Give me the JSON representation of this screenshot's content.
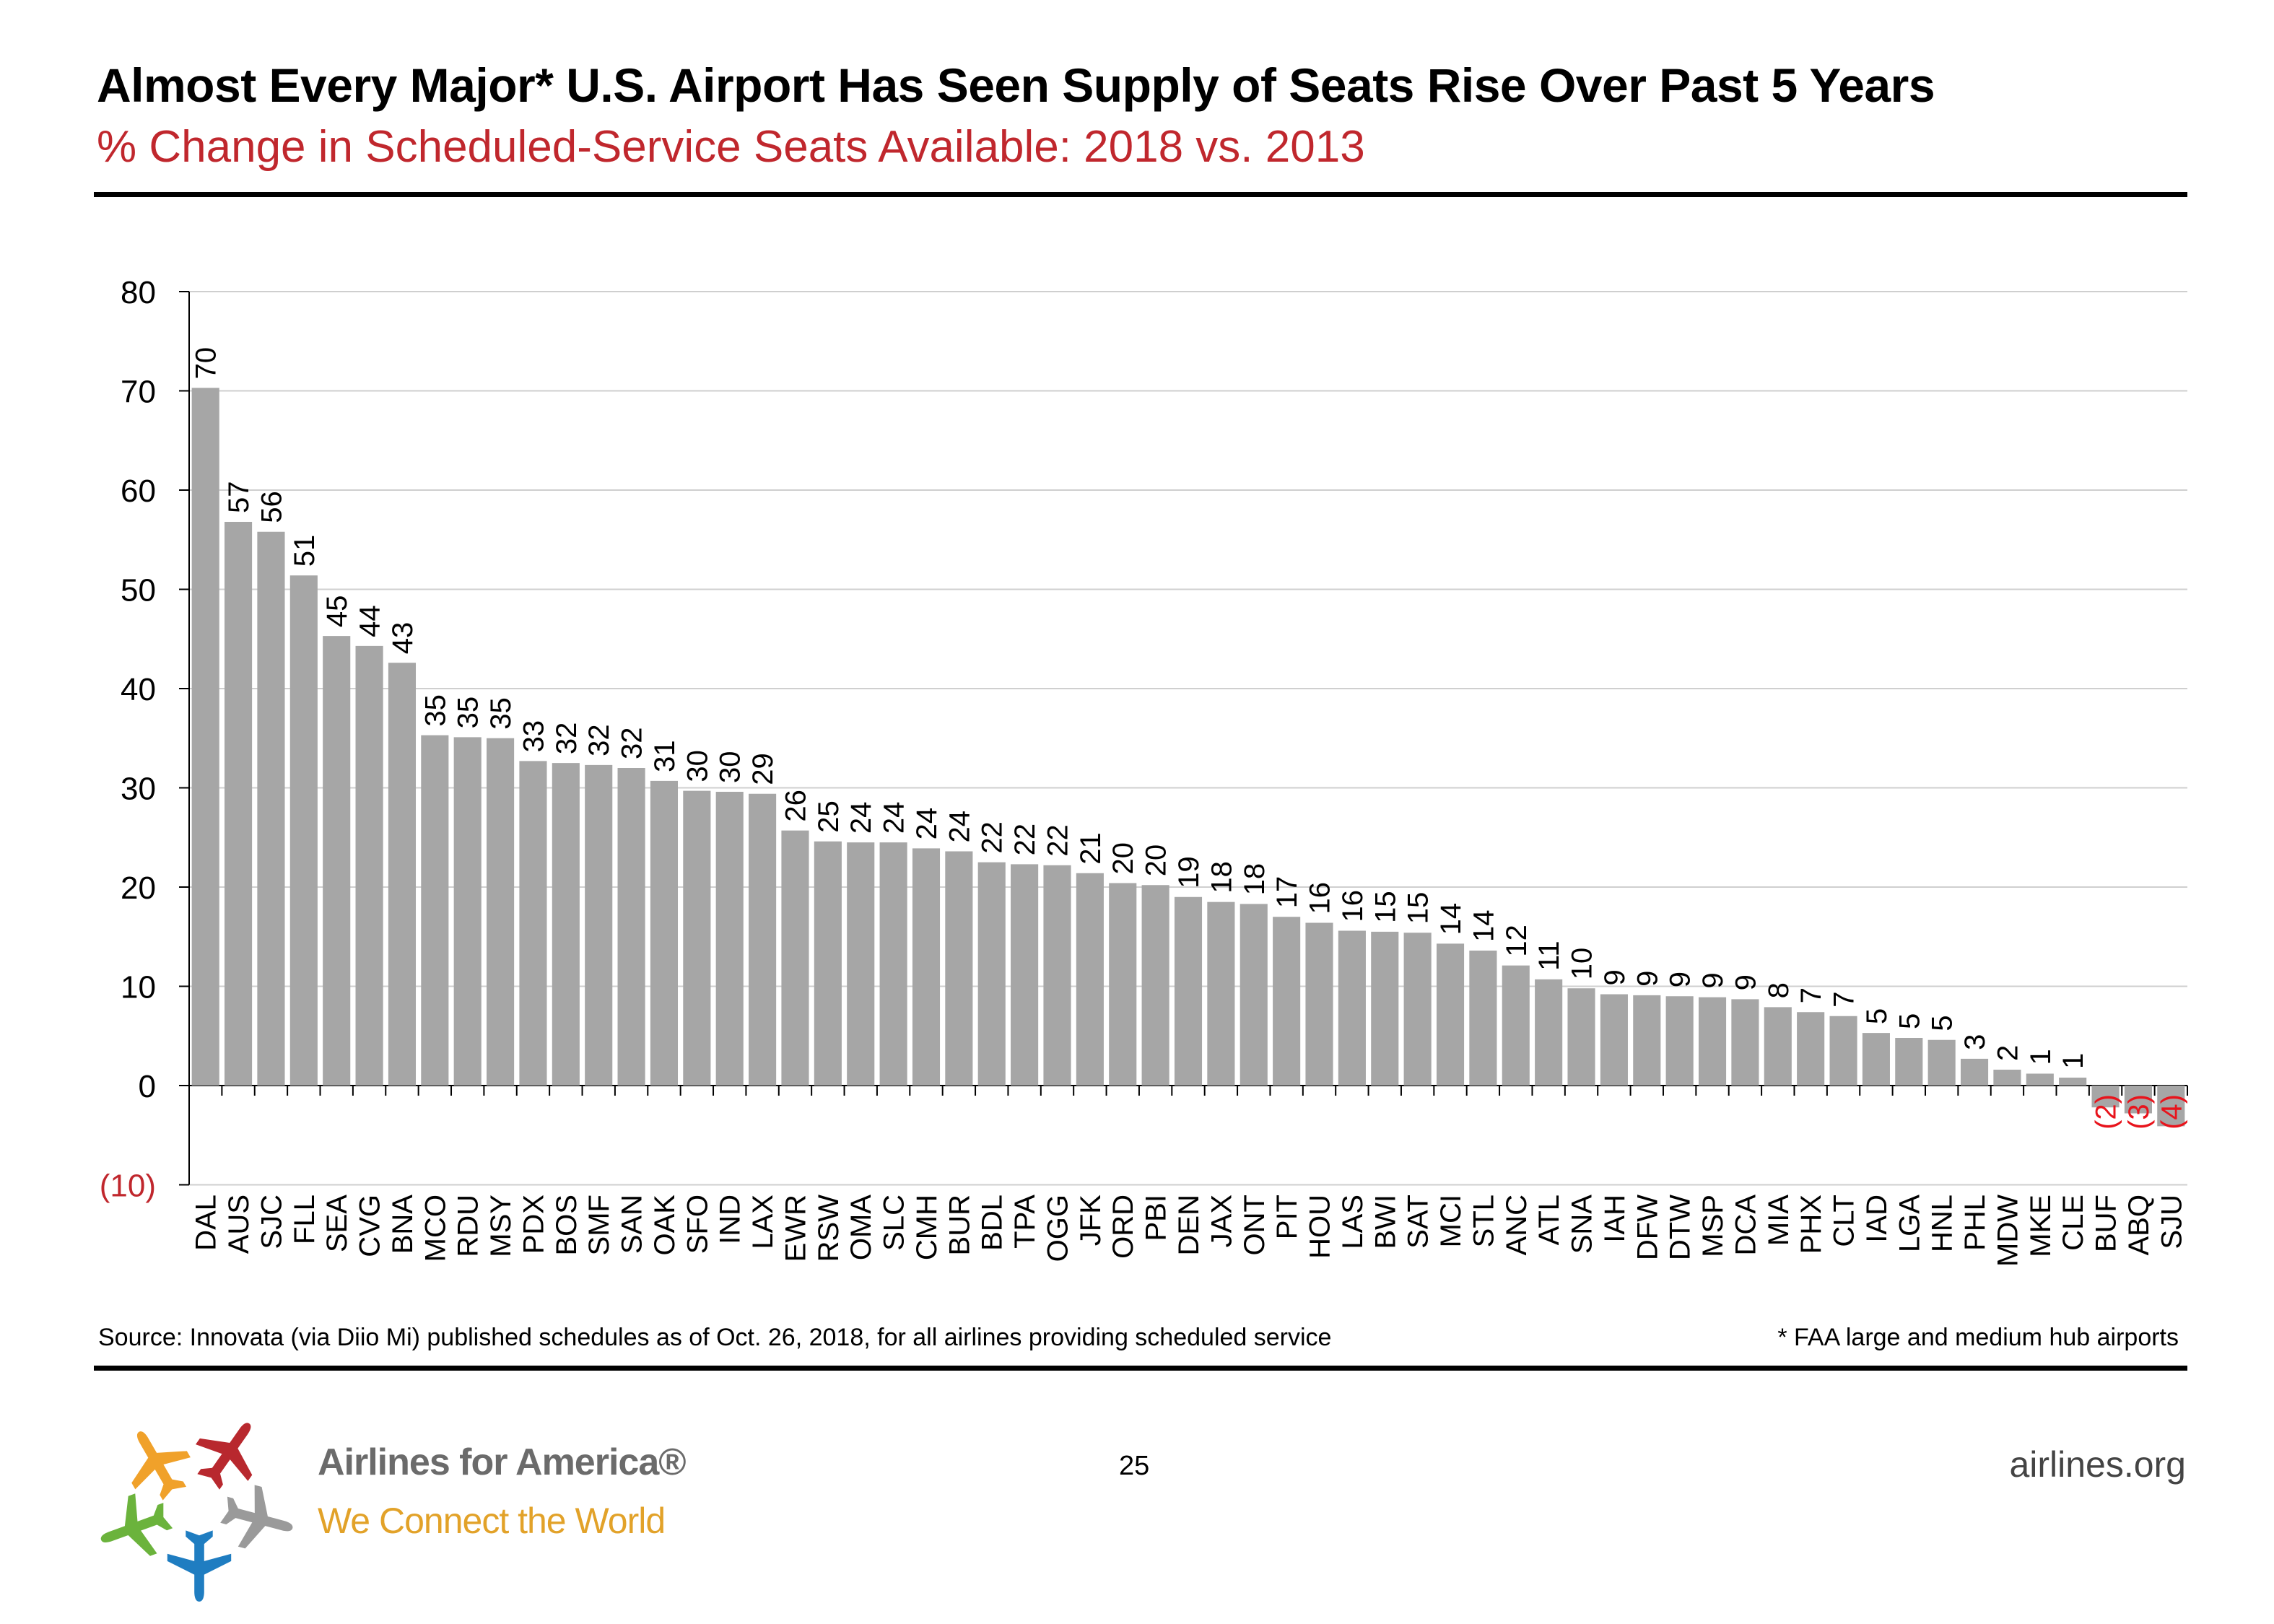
{
  "header": {
    "title": "Almost Every Major* U.S. Airport Has Seen Supply of Seats Rise Over Past 5 Years",
    "subtitle": "% Change in Scheduled-Service Seats Available: 2018 vs. 2013"
  },
  "chart_data": {
    "type": "bar",
    "title": "% Change in Scheduled-Service Seats Available: 2018 vs. 2013",
    "xlabel": "",
    "ylabel": "",
    "ylim": [
      -10,
      80
    ],
    "yticks": [
      80,
      70,
      60,
      50,
      40,
      30,
      20,
      10,
      0,
      -10
    ],
    "ytick_labels": [
      "80",
      "70",
      "60",
      "50",
      "40",
      "30",
      "20",
      "10",
      "0",
      "(10)"
    ],
    "grid": true,
    "bar_color": "#a6a6a6",
    "negative_label_color": "#e8141c",
    "categories": [
      "DAL",
      "AUS",
      "SJC",
      "FLL",
      "SEA",
      "CVG",
      "BNA",
      "MCO",
      "RDU",
      "MSY",
      "PDX",
      "BOS",
      "SMF",
      "SAN",
      "OAK",
      "SFO",
      "IND",
      "LAX",
      "EWR",
      "RSW",
      "OMA",
      "SLC",
      "CMH",
      "BUR",
      "BDL",
      "TPA",
      "OGG",
      "JFK",
      "ORD",
      "PBI",
      "DEN",
      "JAX",
      "ONT",
      "PIT",
      "HOU",
      "LAS",
      "BWI",
      "SAT",
      "MCI",
      "STL",
      "ANC",
      "ATL",
      "SNA",
      "IAH",
      "DFW",
      "DTW",
      "MSP",
      "DCA",
      "MIA",
      "PHX",
      "CLT",
      "IAD",
      "LGA",
      "HNL",
      "PHL",
      "MDW",
      "MKE",
      "CLE",
      "BUF",
      "ABQ",
      "SJU"
    ],
    "values": [
      70.3,
      56.8,
      55.8,
      51.4,
      45.3,
      44.3,
      42.6,
      35.3,
      35.1,
      35.0,
      32.7,
      32.5,
      32.3,
      32.0,
      30.7,
      29.7,
      29.6,
      29.4,
      25.7,
      24.6,
      24.5,
      24.5,
      23.9,
      23.6,
      22.5,
      22.3,
      22.2,
      21.4,
      20.4,
      20.2,
      19.0,
      18.5,
      18.3,
      17.0,
      16.4,
      15.6,
      15.5,
      15.4,
      14.3,
      13.6,
      12.1,
      10.7,
      9.8,
      9.2,
      9.1,
      9.0,
      8.9,
      8.7,
      7.9,
      7.4,
      7.0,
      5.3,
      4.8,
      4.6,
      2.7,
      1.6,
      1.2,
      0.8,
      -2.2,
      -2.8,
      -4.1
    ],
    "data_labels": [
      "70",
      "57",
      "56",
      "51",
      "45",
      "44",
      "43",
      "35",
      "35",
      "35",
      "33",
      "32",
      "32",
      "32",
      "31",
      "30",
      "30",
      "29",
      "26",
      "25",
      "24",
      "24",
      "24",
      "24",
      "22",
      "22",
      "22",
      "21",
      "20",
      "20",
      "19",
      "18",
      "18",
      "17",
      "16",
      "16",
      "15",
      "15",
      "14",
      "14",
      "12",
      "11",
      "10",
      "9",
      "9",
      "9",
      "9",
      "9",
      "8",
      "7",
      "7",
      "5",
      "5",
      "5",
      "3",
      "2",
      "1",
      "1",
      "(2)",
      "(3)",
      "(4)"
    ]
  },
  "footer": {
    "source": "Source: Innovata (via Diio Mi) published schedules as of Oct. 26, 2018, for all airlines providing scheduled service",
    "footnote": "* FAA large and medium hub airports",
    "page_number": "25",
    "website": "airlines.org"
  },
  "brand": {
    "name": "Airlines for America®",
    "tagline": "We Connect the World",
    "logo_icon": "airplanes-pinwheel-logo",
    "colors": {
      "orange": "#f0a12a",
      "red": "#b8282e",
      "green": "#6bb33c",
      "blue": "#1f7dc1",
      "gray": "#9a9a9a"
    }
  }
}
